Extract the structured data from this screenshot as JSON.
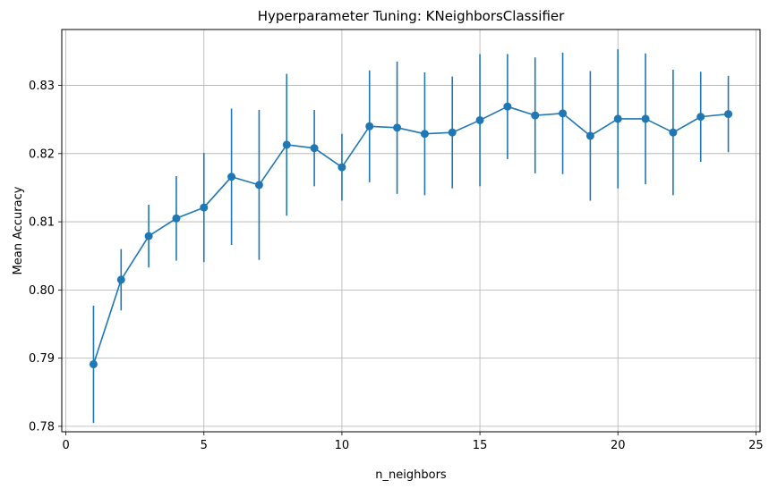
{
  "chart_data": {
    "type": "line",
    "title": "Hyperparameter Tuning: KNeighborsClassifier",
    "xlabel": "n_neighbors",
    "ylabel": "Mean Accuracy",
    "xlim": [
      -0.15,
      25.15
    ],
    "ylim": [
      0.7792,
      0.8382
    ],
    "xticks": [
      0,
      5,
      10,
      15,
      20,
      25
    ],
    "yticks": [
      0.78,
      0.79,
      0.8,
      0.81,
      0.82,
      0.83
    ],
    "xtick_labels": [
      "0",
      "5",
      "10",
      "15",
      "20",
      "25"
    ],
    "ytick_labels": [
      "0.78",
      "0.79",
      "0.80",
      "0.81",
      "0.82",
      "0.83"
    ],
    "grid": true,
    "series_color": "#1f77b4",
    "x": [
      1,
      2,
      3,
      4,
      5,
      6,
      7,
      8,
      9,
      10,
      11,
      12,
      13,
      14,
      15,
      16,
      17,
      18,
      19,
      20,
      21,
      22,
      23,
      24
    ],
    "y": [
      0.7891,
      0.8015,
      0.8079,
      0.8105,
      0.8121,
      0.8166,
      0.8154,
      0.8213,
      0.8208,
      0.818,
      0.824,
      0.8238,
      0.8229,
      0.8231,
      0.8249,
      0.8269,
      0.8256,
      0.8259,
      0.8226,
      0.8251,
      0.8251,
      0.8231,
      0.8254,
      0.8258
    ],
    "yerr": [
      0.0086,
      0.0045,
      0.0046,
      0.0062,
      0.008,
      0.01,
      0.011,
      0.0104,
      0.0056,
      0.0049,
      0.0082,
      0.0097,
      0.009,
      0.0082,
      0.0097,
      0.0077,
      0.0085,
      0.0089,
      0.0095,
      0.0102,
      0.0096,
      0.0092,
      0.0066,
      0.0056
    ]
  }
}
